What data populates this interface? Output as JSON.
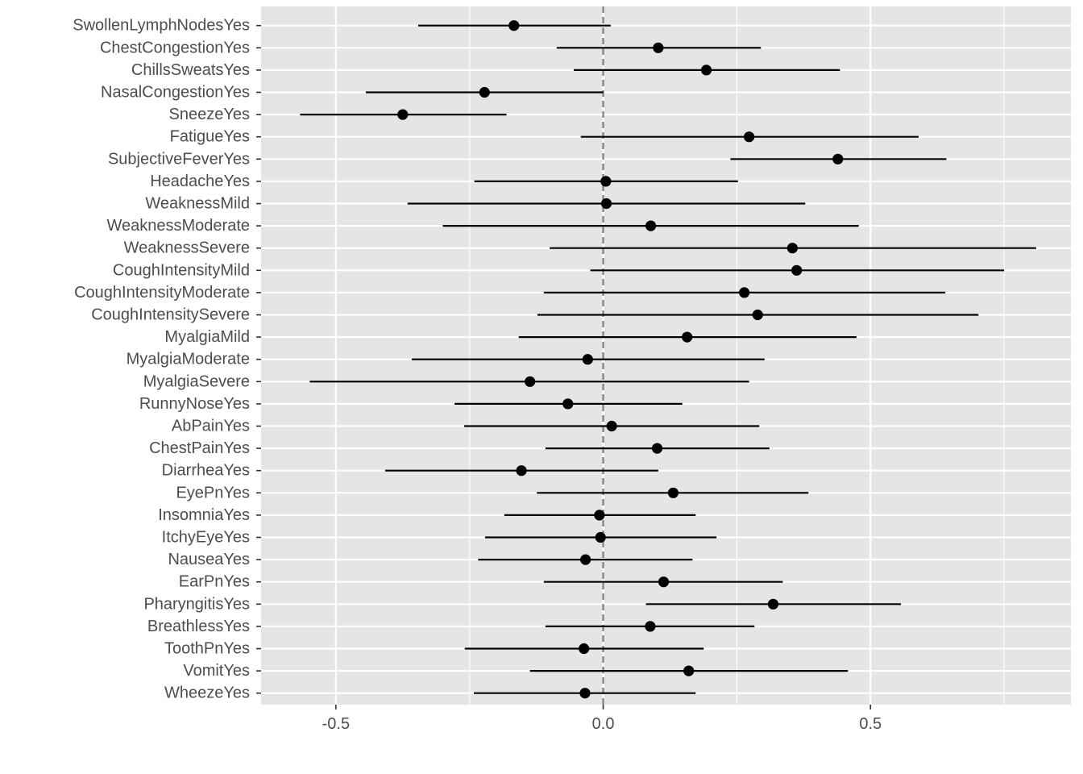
{
  "chart_data": {
    "type": "scatter",
    "subtype": "coefficient-interval-plot",
    "title": "",
    "xlabel": "",
    "ylabel": "",
    "xlim": [
      -0.64,
      0.875
    ],
    "x_ticks": [
      -0.5,
      0.0,
      0.5
    ],
    "x_tick_labels": [
      "-0.5",
      "0.0",
      "0.5"
    ],
    "reference_line": 0,
    "grid": true,
    "legend": "none",
    "colors": {
      "panel": "#e5e5e5",
      "grid": "#ffffff",
      "marks": "#000000",
      "reference_line": "#7f7f7f",
      "tick_text": "#4d4d4d"
    },
    "categories": [
      "SwollenLymphNodesYes",
      "ChestCongestionYes",
      "ChillsSweatsYes",
      "NasalCongestionYes",
      "SneezeYes",
      "FatigueYes",
      "SubjectiveFeverYes",
      "HeadacheYes",
      "WeaknessMild",
      "WeaknessModerate",
      "WeaknessSevere",
      "CoughIntensityMild",
      "CoughIntensityModerate",
      "CoughIntensitySevere",
      "MyalgiaMild",
      "MyalgiaModerate",
      "MyalgiaSevere",
      "RunnyNoseYes",
      "AbPainYes",
      "ChestPainYes",
      "DiarrheaYes",
      "EyePnYes",
      "InsomniaYes",
      "ItchyEyeYes",
      "NauseaYes",
      "EarPnYes",
      "PharyngitisYes",
      "BreathlessYes",
      "ToothPnYes",
      "VomitYes",
      "WheezeYes"
    ],
    "estimate": [
      -0.167,
      0.103,
      0.193,
      -0.222,
      -0.375,
      0.273,
      0.439,
      0.005,
      0.006,
      0.089,
      0.354,
      0.362,
      0.264,
      0.289,
      0.157,
      -0.029,
      -0.137,
      -0.066,
      0.016,
      0.101,
      -0.153,
      0.131,
      -0.007,
      -0.005,
      -0.033,
      0.113,
      0.318,
      0.088,
      -0.036,
      0.16,
      -0.034
    ],
    "lower": [
      -0.346,
      -0.087,
      -0.055,
      -0.444,
      -0.567,
      -0.042,
      0.238,
      -0.241,
      -0.366,
      -0.3,
      -0.1,
      -0.024,
      -0.111,
      -0.123,
      -0.158,
      -0.358,
      -0.549,
      -0.278,
      -0.26,
      -0.108,
      -0.408,
      -0.124,
      -0.185,
      -0.221,
      -0.234,
      -0.111,
      0.08,
      -0.108,
      -0.259,
      -0.137,
      -0.242
    ],
    "upper": [
      0.014,
      0.295,
      0.443,
      0.0,
      -0.181,
      0.59,
      0.642,
      0.252,
      0.378,
      0.478,
      0.81,
      0.75,
      0.64,
      0.702,
      0.474,
      0.302,
      0.273,
      0.148,
      0.292,
      0.311,
      0.103,
      0.384,
      0.173,
      0.212,
      0.167,
      0.336,
      0.557,
      0.283,
      0.188,
      0.458,
      0.173
    ]
  }
}
